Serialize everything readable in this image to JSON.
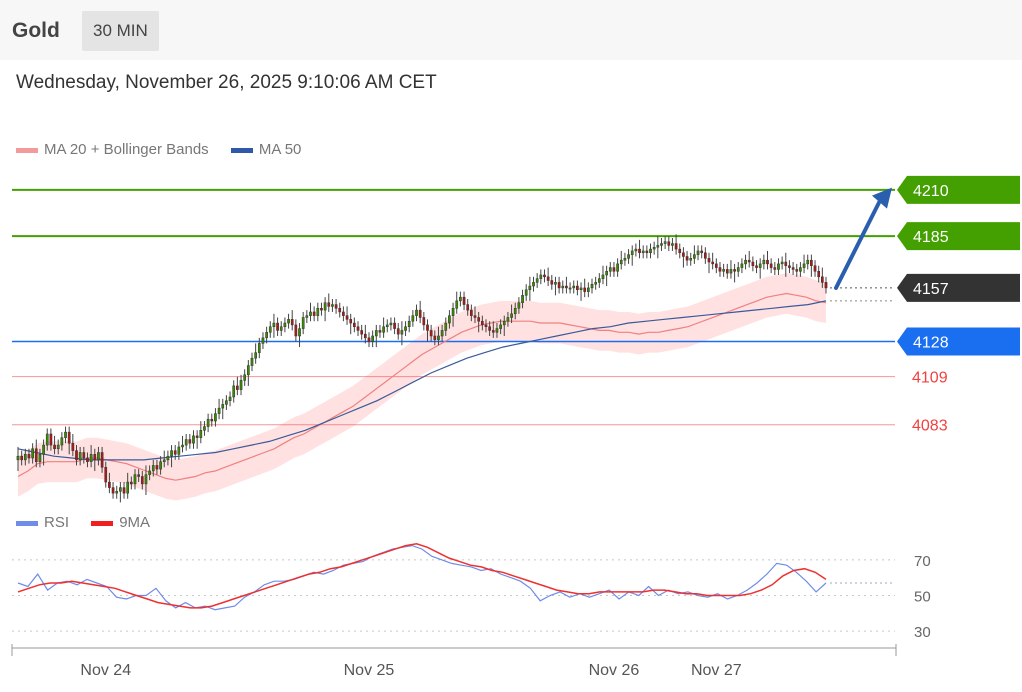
{
  "header": {
    "instrument": "Gold",
    "timeframe": "30 MIN"
  },
  "datetime": "Wednesday, November 26, 2025 9:10:06 AM CET",
  "colors": {
    "green": "#43a000",
    "blue": "#1a6ef0",
    "red": "#f04040",
    "dark": "#333333",
    "bollinger": "#ffdcdc",
    "ma20": "#f08080",
    "ma50": "#3a5a9a",
    "rsi": "#6f8de8",
    "rsi_ma": "#ee3030",
    "arrow": "#2a5fb0"
  },
  "legend_main": [
    {
      "label": "MA 20 + Bollinger Bands",
      "color": "#f39a9a"
    },
    {
      "label": "MA 50",
      "color": "#2e58a8"
    }
  ],
  "legend_rsi": [
    {
      "label": "RSI",
      "color": "#6f8de8"
    },
    {
      "label": "9MA",
      "color": "#ee2020"
    }
  ],
  "chart_data": [
    {
      "type": "candlestick",
      "title": "Gold 30 MIN",
      "ylim": [
        4045,
        4237
      ],
      "xaxis_labels": [
        {
          "label": "Nov 24",
          "index": 24
        },
        {
          "label": "Nov 25",
          "index": 96
        },
        {
          "label": "Nov 26",
          "index": 163
        },
        {
          "label": "Nov 27",
          "index": 191
        }
      ],
      "levels": [
        {
          "value": 4210,
          "label": "4210",
          "style": "resistance",
          "color": "#43a000"
        },
        {
          "value": 4185,
          "label": "4185",
          "style": "resistance",
          "color": "#43a000"
        },
        {
          "value": 4157,
          "label": "4157",
          "style": "current",
          "color": "#333333"
        },
        {
          "value": 4128,
          "label": "4128",
          "style": "pivot",
          "color": "#1a6ef0"
        },
        {
          "value": 4109,
          "label": "4109",
          "style": "support",
          "color": "#f04040"
        },
        {
          "value": 4083,
          "label": "4083",
          "style": "support",
          "color": "#f04040"
        }
      ],
      "close_series": [
        4066,
        4064,
        4067,
        4065,
        4070,
        4063,
        4067,
        4072,
        4078,
        4072,
        4070,
        4072,
        4076,
        4079,
        4073,
        4069,
        4064,
        4068,
        4065,
        4063,
        4067,
        4064,
        4068,
        4060,
        4052,
        4049,
        4046,
        4047,
        4049,
        4046,
        4052,
        4051,
        4056,
        4055,
        4051,
        4056,
        4058,
        4061,
        4059,
        4063,
        4064,
        4066,
        4069,
        4067,
        4071,
        4072,
        4075,
        4073,
        4077,
        4076,
        4080,
        4082,
        4086,
        4085,
        4089,
        4092,
        4094,
        4096,
        4098,
        4104,
        4102,
        4107,
        4110,
        4115,
        4119,
        4122,
        4127,
        4130,
        4133,
        4136,
        4138,
        4134,
        4136,
        4138,
        4140,
        4137,
        4131,
        4135,
        4141,
        4142,
        4144,
        4142,
        4146,
        4145,
        4149,
        4147,
        4148,
        4146,
        4144,
        4142,
        4140,
        4138,
        4136,
        4134,
        4132,
        4130,
        4128,
        4131,
        4134,
        4133,
        4136,
        4137,
        4138,
        4135,
        4132,
        4134,
        4136,
        4139,
        4142,
        4145,
        4141,
        4137,
        4134,
        4131,
        4129,
        4131,
        4134,
        4138,
        4142,
        4146,
        4150,
        4152,
        4148,
        4145,
        4142,
        4141,
        4139,
        4137,
        4136,
        4134,
        4133,
        4135,
        4137,
        4139,
        4141,
        4143,
        4146,
        4149,
        4153,
        4156,
        4158,
        4160,
        4162,
        4164,
        4163,
        4161,
        4159,
        4160,
        4157,
        4158,
        4157,
        4157,
        4158,
        4156,
        4157,
        4155,
        4157,
        4159,
        4160,
        4162,
        4164,
        4166,
        4168,
        4166,
        4170,
        4172,
        4173,
        4175,
        4177,
        4178,
        4176,
        4177,
        4176,
        4178,
        4179,
        4180,
        4181,
        4182,
        4180,
        4181,
        4178,
        4176,
        4174,
        4172,
        4173,
        4175,
        4177,
        4176,
        4173,
        4171,
        4170,
        4168,
        4166,
        4167,
        4165,
        4167,
        4166,
        4168,
        4170,
        4172,
        4171,
        4169,
        4168,
        4170,
        4172,
        4170,
        4168,
        4167,
        4170,
        4171,
        4169,
        4168,
        4167,
        4166,
        4168,
        4170,
        4172,
        4169,
        4166,
        4163,
        4160,
        4157
      ],
      "ma20": [
        4055,
        4058,
        4062,
        4063,
        4063,
        4063,
        4063,
        4065,
        4065,
        4064,
        4063,
        4062,
        4060,
        4058,
        4056,
        4054,
        4053,
        4054,
        4055,
        4057,
        4058,
        4060,
        4062,
        4064,
        4066,
        4068,
        4070,
        4073,
        4076,
        4078,
        4081,
        4084,
        4087,
        4090,
        4093,
        4097,
        4101,
        4105,
        4109,
        4113,
        4117,
        4121,
        4124,
        4127,
        4130,
        4133,
        4135,
        4137,
        4138,
        4139,
        4139,
        4139,
        4139,
        4138,
        4138,
        4138,
        4137,
        4136,
        4135,
        4134,
        4134,
        4133,
        4133,
        4132,
        4133,
        4133,
        4134,
        4135,
        4136,
        4138,
        4140,
        4142,
        4144,
        4146,
        4148,
        4150,
        4152,
        4153,
        4154,
        4153,
        4152,
        4150,
        4149
      ],
      "ma50": [
        4070,
        4068,
        4066,
        4065,
        4064,
        4064,
        4064,
        4064,
        4065,
        4066,
        4067,
        4068,
        4070,
        4072,
        4074,
        4077,
        4080,
        4084,
        4088,
        4092,
        4096,
        4101,
        4106,
        4111,
        4115,
        4119,
        4122,
        4125,
        4127,
        4129,
        4131,
        4133,
        4135,
        4136,
        4138,
        4139,
        4140,
        4141,
        4142,
        4143,
        4144,
        4145,
        4146,
        4147,
        4148,
        4150
      ],
      "rsi": {
        "ylim": [
          25,
          80
        ],
        "levels": [
          {
            "value": 70,
            "label": "70"
          },
          {
            "value": 50,
            "label": "50"
          },
          {
            "value": 30,
            "label": "30"
          }
        ],
        "rsi_series": [
          57,
          55,
          62,
          53,
          57,
          58,
          56,
          59,
          57,
          55,
          49,
          48,
          50,
          50,
          54,
          47,
          43,
          46,
          43,
          44,
          42,
          43,
          44,
          49,
          52,
          56,
          58,
          58,
          59,
          61,
          63,
          62,
          64,
          67,
          68,
          69,
          72,
          74,
          76,
          77,
          78,
          76,
          72,
          70,
          68,
          67,
          66,
          64,
          65,
          62,
          60,
          58,
          54,
          47,
          50,
          52,
          49,
          51,
          49,
          51,
          53,
          48,
          52,
          50,
          55,
          50,
          53,
          51,
          52,
          50,
          49,
          51,
          48,
          50,
          53,
          57,
          62,
          68,
          67,
          63,
          58,
          52,
          57
        ],
        "ma9_series": [
          52,
          54,
          56,
          57,
          57,
          58,
          57,
          56,
          55,
          54,
          52,
          50,
          48,
          46,
          45,
          44,
          43,
          43,
          44,
          46,
          48,
          50,
          52,
          54,
          56,
          58,
          60,
          62,
          63,
          65,
          66,
          68,
          70,
          72,
          74,
          76,
          78,
          79,
          77,
          74,
          71,
          69,
          67,
          66,
          64,
          63,
          61,
          59,
          57,
          55,
          53,
          52,
          51,
          51,
          52,
          52,
          52,
          52,
          52,
          53,
          53,
          52,
          51,
          51,
          50,
          50,
          50,
          50,
          51,
          53,
          56,
          61,
          64,
          65,
          63,
          59
        ]
      }
    }
  ]
}
